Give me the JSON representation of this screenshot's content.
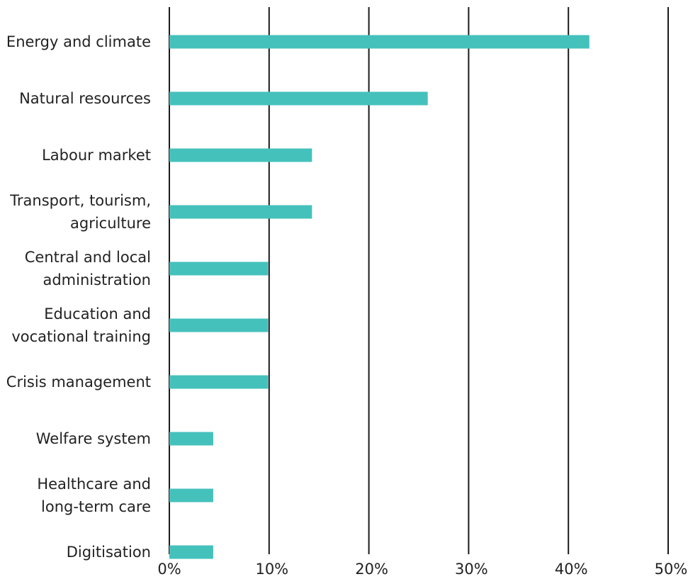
{
  "chart_data": {
    "type": "bar",
    "orientation": "horizontal",
    "title": "",
    "xlabel": "",
    "ylabel": "",
    "categories": [
      [
        "Energy and climate"
      ],
      [
        "Natural resources"
      ],
      [
        "Labour market"
      ],
      [
        "Transport, tourism,",
        "agriculture"
      ],
      [
        "Central and local",
        "administration"
      ],
      [
        "Education and",
        "vocational training"
      ],
      [
        "Crisis management"
      ],
      [
        "Welfare system"
      ],
      [
        "Healthcare and",
        "long-term care"
      ],
      [
        "Digitisation"
      ]
    ],
    "values": [
      42.1,
      25.9,
      14.3,
      14.3,
      9.9,
      9.9,
      9.9,
      4.4,
      4.4,
      4.4
    ],
    "xlim": [
      0,
      50
    ],
    "xticks": [
      0,
      10,
      20,
      30,
      40,
      50
    ],
    "xtick_labels": [
      "0%",
      "10%",
      "20%",
      "30%",
      "40%",
      "50%"
    ],
    "grid": true,
    "bar_color": "#45c1bc",
    "grid_color": "#1a1a1a"
  }
}
